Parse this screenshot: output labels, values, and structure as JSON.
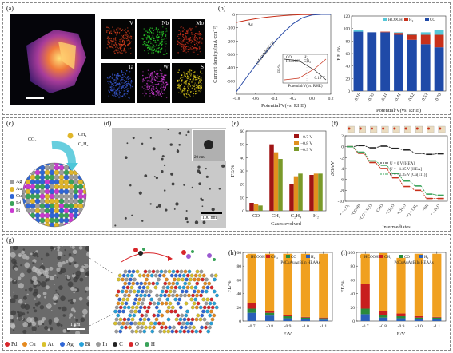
{
  "panels": {
    "a": {
      "label": "(a)",
      "maps": [
        {
          "el": "V",
          "color": "#d9401e"
        },
        {
          "el": "Nb",
          "color": "#2bd42b"
        },
        {
          "el": "Mo",
          "color": "#c9301c"
        },
        {
          "el": "Ta",
          "color": "#3a5bd8"
        },
        {
          "el": "W",
          "color": "#c93ad0"
        },
        {
          "el": "S",
          "color": "#e6d21a"
        }
      ]
    },
    "b": {
      "label": "(b)",
      "ag": "Ag",
      "alloy": "(MoWNbTaV)S₂",
      "ylabel": "Current density/(mA·cm⁻²)",
      "xlabel": "Potential/V(vs. RHE)",
      "inset_ylabel": "FE/%",
      "inset_xlabel": "Potential/V(vs. RHE)",
      "inset_legend": [
        "CO",
        "H₂",
        "HCOOH",
        "CH₄"
      ],
      "inset_val": "0.16 V",
      "feylabel": "F.E./%",
      "fexlabel": "Potential/V(vs. RHE)",
      "fe_legend": [
        "HCOOH",
        "H₂",
        "CO"
      ]
    },
    "c": {
      "label": "(c)",
      "co2": "CO₂",
      "ch4": "CH₄",
      "c2h4": "C₂H₄",
      "legend": [
        "Ag",
        "Au",
        "Cu",
        "Pd",
        "Pt"
      ]
    },
    "d": {
      "label": "(d)",
      "scale1": "20 nm",
      "scale2": "100 nm"
    },
    "e": {
      "label": "(e)",
      "ylabel": "FE/%",
      "xlabel": "Gases evolved",
      "legend": [
        "−0.7 V",
        "−0.8 V",
        "−0.9 V"
      ]
    },
    "f": {
      "label": "(f)",
      "ylabel": "ΔG/eV",
      "xlabel": "Intermediates",
      "legend": [
        "U = 0 V   [HEA]",
        "U = −1.35 V [HEA]",
        "U = −1.35 V [Cu(111)]"
      ]
    },
    "g": {
      "label": "(g)",
      "scale": "1 μm"
    },
    "h": {
      "label": "(h)",
      "ylabel": "FE/%",
      "xlabel": "E/V",
      "title": "PdCuAuAgBiIn HEAAs",
      "legend": [
        "HCOOH",
        "CH₄",
        "CO",
        "H₂"
      ]
    },
    "i": {
      "label": "(i)",
      "ylabel": "FE/%",
      "xlabel": "E/V",
      "title": "PdCuAuAgBiIn HEAAs",
      "legend": [
        "HCOOH",
        "CH₄",
        "CO",
        "H₂"
      ]
    }
  },
  "elements_legend": [
    {
      "name": "Pd",
      "color": "#d8262a"
    },
    {
      "name": "Cu",
      "color": "#e58a1f"
    },
    {
      "name": "Au",
      "color": "#d9c12b"
    },
    {
      "name": "Ag",
      "color": "#2f66d6"
    },
    {
      "name": "Bi",
      "color": "#27a1d9"
    },
    {
      "name": "In",
      "color": "#9b9b9b"
    },
    {
      "name": "C",
      "color": "#222222"
    },
    {
      "name": "O",
      "color": "#d8262a"
    },
    {
      "name": "H",
      "color": "#3aa35a"
    }
  ],
  "chart_data": [
    {
      "id": "b-lsv",
      "type": "line",
      "xlabel": "Potential/V(vs. RHE)",
      "ylabel": "Current density/(mA·cm⁻²)",
      "xlim": [
        -0.8,
        0.2
      ],
      "ylim": [
        -600,
        0
      ],
      "xticks": [
        -0.8,
        -0.6,
        -0.4,
        -0.2,
        0.0,
        0.2
      ],
      "yticks": [
        0,
        -100,
        -200,
        -300,
        -400,
        -500
      ],
      "series": [
        {
          "name": "Ag",
          "x": [
            -0.8,
            -0.7,
            -0.6,
            -0.5,
            -0.4,
            -0.3,
            -0.2,
            -0.1,
            0.0,
            0.1,
            0.2
          ],
          "y": [
            -60,
            -45,
            -33,
            -23,
            -15,
            -9,
            -5,
            -2,
            -1,
            0,
            0
          ]
        },
        {
          "name": "(MoWNbTaV)S₂",
          "x": [
            -0.8,
            -0.7,
            -0.6,
            -0.5,
            -0.4,
            -0.3,
            -0.2,
            -0.1,
            0.0,
            0.1,
            0.2
          ],
          "y": [
            -580,
            -480,
            -385,
            -295,
            -210,
            -135,
            -70,
            -25,
            -5,
            0,
            0
          ]
        }
      ]
    },
    {
      "id": "b-fe",
      "type": "bar",
      "xlabel": "Potential/V(vs. RHE)",
      "ylabel": "F.E./%",
      "ylim": [
        0,
        120
      ],
      "yticks": [
        0,
        20,
        40,
        60,
        80,
        100,
        120
      ],
      "categories": [
        "-0.16",
        "-0.23",
        "-0.31",
        "-0.41",
        "-0.52",
        "-0.62",
        "-0.76"
      ],
      "series": [
        {
          "name": "CO",
          "values": [
            95,
            94,
            94,
            90,
            82,
            75,
            70
          ]
        },
        {
          "name": "H₂",
          "values": [
            0,
            0,
            1,
            3,
            8,
            15,
            20
          ]
        },
        {
          "name": "HCOOH",
          "values": [
            2,
            0,
            0,
            1,
            2,
            4,
            8
          ]
        }
      ]
    },
    {
      "id": "e",
      "type": "bar",
      "xlabel": "Gases evolved",
      "ylabel": "FE/%",
      "ylim": [
        0,
        60
      ],
      "yticks": [
        0,
        10,
        20,
        30,
        40,
        50,
        60
      ],
      "categories": [
        "CO",
        "CH₄",
        "C₂H₄",
        "H₂"
      ],
      "series": [
        {
          "name": "−0.7 V",
          "values": [
            6,
            50,
            20,
            27
          ]
        },
        {
          "name": "−0.8 V",
          "values": [
            5,
            44,
            26,
            28
          ]
        },
        {
          "name": "−0.9 V",
          "values": [
            4,
            39,
            28,
            28
          ]
        }
      ]
    },
    {
      "id": "f",
      "type": "line",
      "xlabel": "Intermediates",
      "ylabel": "ΔG/eV",
      "ylim": [
        -10,
        2
      ],
      "yticks": [
        2,
        0,
        -2,
        -4,
        -6,
        -8,
        -10
      ],
      "categories": [
        "* + CO₂",
        "*COOH",
        "*CO + H₂O",
        "*CHO",
        "*CH₂O",
        "*CH₃O",
        "*O + CH₄",
        "*OH",
        "* + H₂O"
      ],
      "series": [
        {
          "name": "U = 0 V   [HEA]",
          "values": [
            0,
            0.2,
            -0.2,
            0.1,
            -0.3,
            -0.6,
            -1.2,
            -1.4,
            -1.3
          ]
        },
        {
          "name": "U = −1.35 V [HEA]",
          "values": [
            0,
            -1.2,
            -2.9,
            -4.0,
            -5.7,
            -7.3,
            -8.0,
            -9.5,
            -9.5
          ]
        },
        {
          "name": "U = −1.35 V [Cu(111)]",
          "values": [
            0,
            -1.0,
            -2.6,
            -3.4,
            -4.9,
            -6.3,
            -7.2,
            -8.7,
            -8.9
          ]
        }
      ]
    },
    {
      "id": "h",
      "type": "bar",
      "title": "PdCuAuAgBiIn HEAAs",
      "xlabel": "E/V",
      "ylabel": "FE/%",
      "ylim": [
        0,
        100
      ],
      "yticks": [
        0,
        20,
        40,
        60,
        80,
        100
      ],
      "categories": [
        "-0.7",
        "-0.8",
        "-0.9",
        "-1.0",
        "-1.1"
      ],
      "series": [
        {
          "name": "H₂",
          "values": [
            12,
            8,
            4,
            3,
            2
          ]
        },
        {
          "name": "CO",
          "values": [
            6,
            4,
            3,
            2,
            2
          ]
        },
        {
          "name": "CH₄",
          "values": [
            8,
            3,
            2,
            1,
            1
          ]
        },
        {
          "name": "HCOOH",
          "values": [
            72,
            83,
            89,
            92,
            93
          ]
        }
      ]
    },
    {
      "id": "i",
      "type": "bar",
      "title": "PdCuAuAgBiIn HEAAs",
      "xlabel": "E/V",
      "ylabel": "FE/%",
      "ylim": [
        0,
        100
      ],
      "yticks": [
        0,
        20,
        40,
        60,
        80,
        100
      ],
      "categories": [
        "-0.7",
        "-0.8",
        "-0.9",
        "-1.0",
        "-1.1"
      ],
      "series": [
        {
          "name": "H₂",
          "values": [
            10,
            5,
            4,
            3,
            3
          ]
        },
        {
          "name": "CO",
          "values": [
            8,
            4,
            3,
            2,
            2
          ]
        },
        {
          "name": "CH₄",
          "values": [
            36,
            6,
            4,
            2,
            1
          ]
        },
        {
          "name": "HCOOH",
          "values": [
            44,
            84,
            81,
            91,
            92
          ]
        }
      ]
    }
  ]
}
